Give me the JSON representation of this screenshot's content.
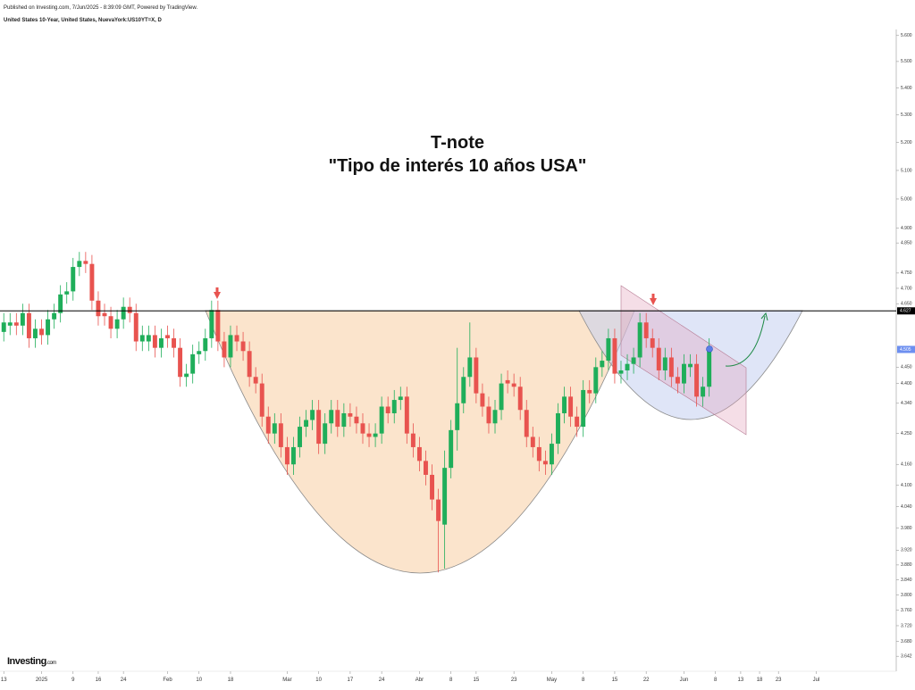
{
  "header": {
    "published": "Published on Investing.com, 7/Jun/2025 - 8:39:09 GMT, Powered by TradingView.",
    "instrument": "United States 10-Year, United States, NuevaYork:US10YT=X, D"
  },
  "logo": {
    "brand": "Investing",
    "suffix": ".com"
  },
  "chart_data": {
    "type": "candlestick",
    "title": "T-note",
    "subtitle": "\"Tipo de interés 10 años USA\"",
    "log_scale": true,
    "up_color": "#1fae5a",
    "down_color": "#e8534f",
    "reference_line": 4.627,
    "last_price": 4.505,
    "ylim": [
      3.62,
      5.62
    ],
    "yticks": [
      {
        "value": 5.6,
        "label": "5.600"
      },
      {
        "value": 5.5,
        "label": "5.500"
      },
      {
        "value": 5.4,
        "label": "5.400"
      },
      {
        "value": 5.3,
        "label": "5.300"
      },
      {
        "value": 5.2,
        "label": "5.200"
      },
      {
        "value": 5.1,
        "label": "5.100"
      },
      {
        "value": 5,
        "label": "5.000"
      },
      {
        "value": 4.9,
        "label": "4.900"
      },
      {
        "value": 4.85,
        "label": "4.850"
      },
      {
        "value": 4.75,
        "label": "4.750"
      },
      {
        "value": 4.7,
        "label": "4.700"
      },
      {
        "value": 4.65,
        "label": "4.650"
      },
      {
        "value": 4.45,
        "label": "4.450"
      },
      {
        "value": 4.4,
        "label": "4.400"
      },
      {
        "value": 4.34,
        "label": "4.340"
      },
      {
        "value": 4.25,
        "label": "4.250"
      },
      {
        "value": 4.16,
        "label": "4.160"
      },
      {
        "value": 4.1,
        "label": "4.100"
      },
      {
        "value": 4.04,
        "label": "4.040"
      },
      {
        "value": 3.98,
        "label": "3.980"
      },
      {
        "value": 3.92,
        "label": "3.920"
      },
      {
        "value": 3.88,
        "label": "3.880"
      },
      {
        "value": 3.84,
        "label": "3.840"
      },
      {
        "value": 3.8,
        "label": "3.800"
      },
      {
        "value": 3.76,
        "label": "3.760"
      },
      {
        "value": 3.72,
        "label": "3.720"
      },
      {
        "value": 3.68,
        "label": "3.680"
      },
      {
        "value": 3.642,
        "label": "3.642"
      }
    ],
    "xlim": [
      -0.6,
      141.7
    ],
    "xticks": [
      {
        "value": 0,
        "label": "13"
      },
      {
        "value": 6,
        "label": "2025"
      },
      {
        "value": 11,
        "label": "9"
      },
      {
        "value": 15,
        "label": "16"
      },
      {
        "value": 19,
        "label": "24"
      },
      {
        "value": 26,
        "label": "Feb"
      },
      {
        "value": 31,
        "label": "10"
      },
      {
        "value": 36,
        "label": "18"
      },
      {
        "value": 45,
        "label": "Mar"
      },
      {
        "value": 50,
        "label": "10"
      },
      {
        "value": 55,
        "label": "17"
      },
      {
        "value": 60,
        "label": "24"
      },
      {
        "value": 66,
        "label": "Abr"
      },
      {
        "value": 71,
        "label": "8"
      },
      {
        "value": 75,
        "label": "15"
      },
      {
        "value": 81,
        "label": "23"
      },
      {
        "value": 87,
        "label": "May"
      },
      {
        "value": 92,
        "label": "8"
      },
      {
        "value": 97,
        "label": "15"
      },
      {
        "value": 102,
        "label": "22"
      },
      {
        "value": 108,
        "label": "Jun"
      },
      {
        "value": 113,
        "label": "8"
      },
      {
        "value": 117,
        "label": "13"
      },
      {
        "value": 120,
        "label": "18"
      },
      {
        "value": 123,
        "label": "23"
      },
      {
        "value": 129,
        "label": "Jul"
      }
    ],
    "open": [
      4.56,
      4.58,
      4.59,
      4.58,
      4.62,
      4.54,
      4.57,
      4.55,
      4.6,
      4.62,
      4.68,
      4.69,
      4.77,
      4.79,
      4.78,
      4.66,
      4.62,
      4.61,
      4.57,
      4.6,
      4.64,
      4.62,
      4.53,
      4.53,
      4.55,
      4.51,
      4.55,
      4.54,
      4.51,
      4.42,
      4.43,
      4.49,
      4.5,
      4.54,
      4.63,
      4.53,
      4.48,
      4.55,
      4.53,
      4.5,
      4.42,
      4.4,
      4.3,
      4.25,
      4.28,
      4.21,
      4.16,
      4.21,
      4.27,
      4.29,
      4.32,
      4.22,
      4.28,
      4.32,
      4.27,
      4.31,
      4.3,
      4.28,
      4.25,
      4.24,
      4.25,
      4.33,
      4.31,
      4.35,
      4.36,
      4.25,
      4.21,
      4.17,
      4.13,
      4.06,
      3.99,
      4.15,
      4.26,
      4.34,
      4.42,
      4.48,
      4.37,
      4.33,
      4.28,
      4.32,
      4.41,
      4.4,
      4.39,
      4.32,
      4.24,
      4.21,
      4.17,
      4.16,
      4.22,
      4.31,
      4.36,
      4.3,
      4.27,
      4.38,
      4.37,
      4.45,
      4.47,
      4.54,
      4.43,
      4.44,
      4.46,
      4.48,
      4.59,
      4.54,
      4.51,
      4.44,
      4.48,
      4.42,
      4.4,
      4.45,
      4.46,
      4.36,
      4.39
    ],
    "high": [
      4.62,
      4.62,
      4.62,
      4.65,
      4.65,
      4.6,
      4.6,
      4.63,
      4.65,
      4.71,
      4.72,
      4.8,
      4.82,
      4.82,
      4.81,
      4.69,
      4.65,
      4.64,
      4.63,
      4.67,
      4.67,
      4.65,
      4.58,
      4.58,
      4.58,
      4.57,
      4.58,
      4.57,
      4.54,
      4.46,
      4.52,
      4.53,
      4.57,
      4.66,
      4.66,
      4.56,
      4.58,
      4.58,
      4.56,
      4.53,
      4.45,
      4.43,
      4.33,
      4.31,
      4.31,
      4.24,
      4.24,
      4.3,
      4.32,
      4.35,
      4.35,
      4.31,
      4.35,
      4.35,
      4.34,
      4.34,
      4.33,
      4.31,
      4.28,
      4.28,
      4.36,
      4.36,
      4.38,
      4.39,
      4.39,
      4.28,
      4.24,
      4.2,
      4.16,
      4.09,
      4.2,
      4.29,
      4.51,
      4.45,
      4.59,
      4.51,
      4.4,
      4.36,
      4.35,
      4.43,
      4.44,
      4.43,
      4.42,
      4.35,
      4.27,
      4.24,
      4.2,
      4.25,
      4.34,
      4.39,
      4.39,
      4.33,
      4.41,
      4.41,
      4.48,
      4.5,
      4.57,
      4.57,
      4.47,
      4.49,
      4.51,
      4.62,
      4.62,
      4.57,
      4.54,
      4.51,
      4.51,
      4.45,
      4.49,
      4.49,
      4.49,
      4.42,
      4.54
    ],
    "low": [
      4.53,
      4.55,
      4.55,
      4.55,
      4.51,
      4.51,
      4.52,
      4.52,
      4.57,
      4.59,
      4.65,
      4.66,
      4.74,
      4.75,
      4.63,
      4.58,
      4.58,
      4.54,
      4.54,
      4.57,
      4.59,
      4.5,
      4.5,
      4.5,
      4.48,
      4.48,
      4.51,
      4.48,
      4.39,
      4.39,
      4.4,
      4.46,
      4.47,
      4.51,
      4.5,
      4.45,
      4.45,
      4.5,
      4.47,
      4.39,
      4.37,
      4.27,
      4.22,
      4.22,
      4.18,
      4.13,
      4.13,
      4.18,
      4.24,
      4.26,
      4.19,
      4.19,
      4.25,
      4.24,
      4.24,
      4.27,
      4.25,
      4.22,
      4.21,
      4.21,
      4.22,
      4.28,
      4.28,
      4.32,
      4.22,
      4.18,
      4.14,
      4.1,
      4.03,
      3.86,
      3.87,
      4.12,
      4.2,
      4.31,
      4.39,
      4.34,
      4.3,
      4.25,
      4.25,
      4.29,
      4.37,
      4.36,
      4.29,
      4.21,
      4.18,
      4.14,
      4.13,
      4.13,
      4.19,
      4.28,
      4.27,
      4.24,
      4.24,
      4.34,
      4.34,
      4.42,
      4.44,
      4.4,
      4.4,
      4.41,
      4.43,
      4.45,
      4.51,
      4.48,
      4.41,
      4.41,
      4.39,
      4.37,
      4.37,
      4.42,
      4.33,
      4.33,
      4.36
    ],
    "close": [
      4.59,
      4.59,
      4.58,
      4.62,
      4.54,
      4.57,
      4.55,
      4.6,
      4.62,
      4.68,
      4.69,
      4.77,
      4.79,
      4.78,
      4.66,
      4.61,
      4.61,
      4.57,
      4.6,
      4.64,
      4.62,
      4.53,
      4.55,
      4.55,
      4.51,
      4.54,
      4.54,
      4.51,
      4.42,
      4.43,
      4.49,
      4.5,
      4.54,
      4.63,
      4.53,
      4.48,
      4.55,
      4.53,
      4.5,
      4.42,
      4.4,
      4.3,
      4.25,
      4.28,
      4.21,
      4.16,
      4.21,
      4.27,
      4.29,
      4.32,
      4.22,
      4.28,
      4.32,
      4.27,
      4.31,
      4.3,
      4.28,
      4.25,
      4.24,
      4.25,
      4.33,
      4.31,
      4.35,
      4.36,
      4.25,
      4.21,
      4.17,
      4.13,
      4.06,
      4.0,
      4.15,
      4.26,
      4.34,
      4.42,
      4.48,
      4.37,
      4.33,
      4.28,
      4.32,
      4.4,
      4.4,
      4.39,
      4.32,
      4.24,
      4.21,
      4.17,
      4.16,
      4.22,
      4.31,
      4.36,
      4.3,
      4.27,
      4.38,
      4.37,
      4.45,
      4.47,
      4.54,
      4.43,
      4.44,
      4.46,
      4.48,
      4.59,
      4.54,
      4.51,
      4.44,
      4.48,
      4.42,
      4.4,
      4.46,
      4.46,
      4.36,
      4.39,
      4.505
    ]
  }
}
